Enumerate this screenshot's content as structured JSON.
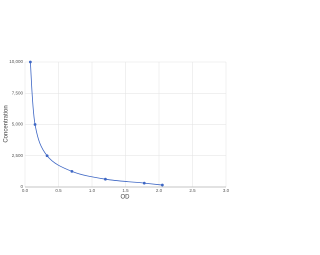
{
  "chart_data": {
    "type": "scatter",
    "x_label": "OD",
    "y_label": "Concentration",
    "series": [
      {
        "color": "#3d66c4",
        "x": [
          0.08,
          0.15,
          0.33,
          0.7,
          1.2,
          1.78,
          2.05
        ],
        "values": [
          10000,
          5000,
          2500,
          1250,
          625,
          312,
          156
        ]
      }
    ],
    "xlim": [
      0,
      3
    ],
    "xticks": [
      {
        "value": 0,
        "label": "0.0"
      },
      0.5,
      {
        "value": 1,
        "label": "1.0"
      },
      1.5,
      {
        "value": 2,
        "label": "2.0"
      },
      2.5,
      {
        "value": 3,
        "label": "3.0"
      }
    ],
    "ylim": [
      0,
      10000
    ],
    "yticks": [
      0,
      {
        "value": 2500,
        "label": "2,500"
      },
      {
        "value": 5000,
        "label": "5,000"
      },
      {
        "value": 7500,
        "label": "7,500"
      },
      {
        "value": 10000,
        "label": "10,000"
      }
    ],
    "grid": true
  }
}
